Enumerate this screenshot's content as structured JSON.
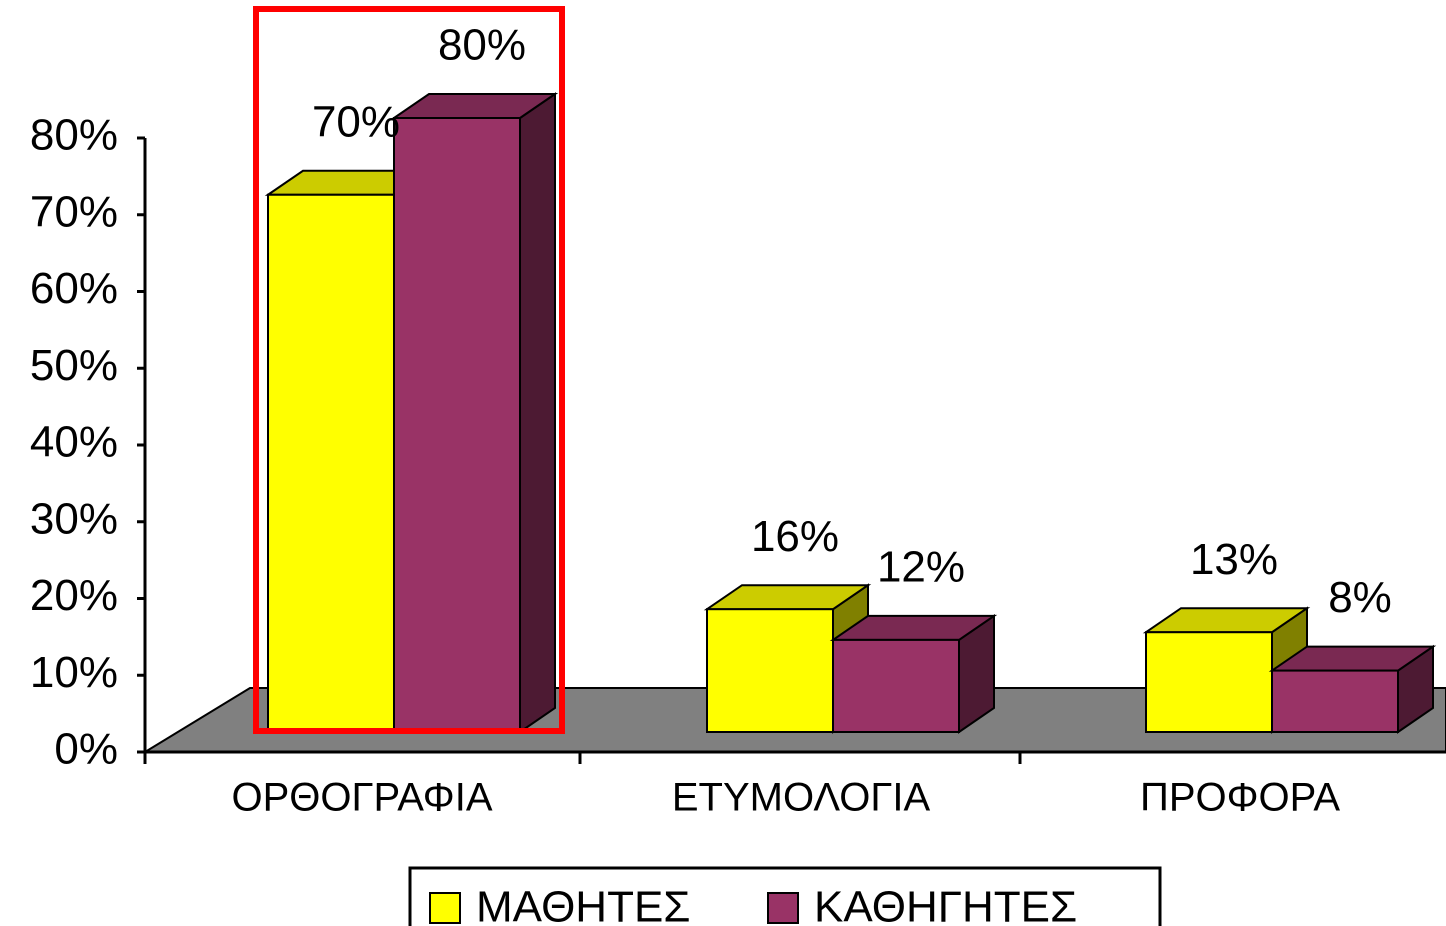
{
  "chart_data": {
    "type": "bar3d",
    "categories": [
      "ΟΡΘΟΓΡΑΦΙΑ",
      "ΕΤΥΜΟΛΟΓΙΑ",
      "ΠΡΟΦΟΡΑ"
    ],
    "series": [
      {
        "name": "ΜΑΘΗΤΕΣ",
        "color": "#ffff00",
        "values": [
          70,
          16,
          13
        ],
        "value_labels": [
          "70%",
          "16%",
          "13%"
        ]
      },
      {
        "name": "ΚΑΘΗΓΗΤΕΣ",
        "color": "#993366",
        "values": [
          80,
          12,
          8
        ],
        "value_labels": [
          "80%",
          "12%",
          "8%"
        ]
      }
    ],
    "ylim": [
      0,
      80
    ],
    "yticks": [
      {
        "value": 0,
        "label": "0%"
      },
      {
        "value": 10,
        "label": "10%"
      },
      {
        "value": 20,
        "label": "20%"
      },
      {
        "value": 30,
        "label": "30%"
      },
      {
        "value": 40,
        "label": "40%"
      },
      {
        "value": 50,
        "label": "50%"
      },
      {
        "value": 60,
        "label": "60%"
      },
      {
        "value": 70,
        "label": "70%"
      },
      {
        "value": 80,
        "label": "80%"
      }
    ],
    "legend": "bottom"
  }
}
